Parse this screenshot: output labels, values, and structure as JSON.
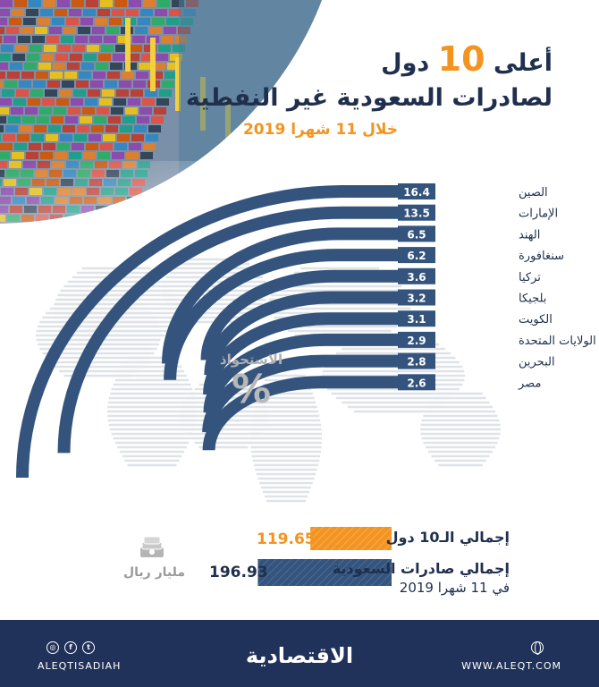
{
  "title": {
    "prefix": "أعلى",
    "number": "10",
    "suffix": "دول",
    "line2": "لصادرات السعودية غير النفطية"
  },
  "subtitle": "خلال 11 شهرا 2019",
  "colors": {
    "navy": "#34547e",
    "dark_navy": "#1f2f4d",
    "orange": "#f39420",
    "footer": "#21325a"
  },
  "chart_data": {
    "type": "bar",
    "title": "أعلى 10 دول لصادرات السعودية غير النفطية",
    "subtitle": "خلال 11 شهرا 2019",
    "value_axis_label": "الاستحواذ %",
    "categories": [
      "الصين",
      "الإمارات",
      "الهند",
      "سنغافورة",
      "تركيا",
      "بلجيكا",
      "الكويت",
      "الولايات المتحدة",
      "البحرين",
      "مصر"
    ],
    "values": [
      16.4,
      13.5,
      6.5,
      6.2,
      3.6,
      3.2,
      3.1,
      2.9,
      2.8,
      2.6
    ],
    "value_labels": [
      "16.4",
      "13.5",
      "6.5",
      "6.2",
      "3.6",
      "3.2",
      "3.1",
      "2.9",
      "2.8",
      "2.6"
    ],
    "totals": {
      "unit": "مليار ريال",
      "series": [
        {
          "name": "إجمالي الـ10 دول",
          "value": 119.65,
          "display": "119.65",
          "color": "#f39420"
        },
        {
          "name": "إجمالي صادرات السعودية",
          "sub": "في 11 شهرا 2019",
          "value": 196.93,
          "display": "196.93",
          "color": "#34547e"
        }
      ]
    }
  },
  "footer": {
    "logo": "الاقتصادية",
    "handle": "ALEQTISADIAH",
    "website": "WWW.ALEQT.COM",
    "social_icons": [
      "instagram-icon",
      "facebook-icon",
      "twitter-icon"
    ]
  }
}
